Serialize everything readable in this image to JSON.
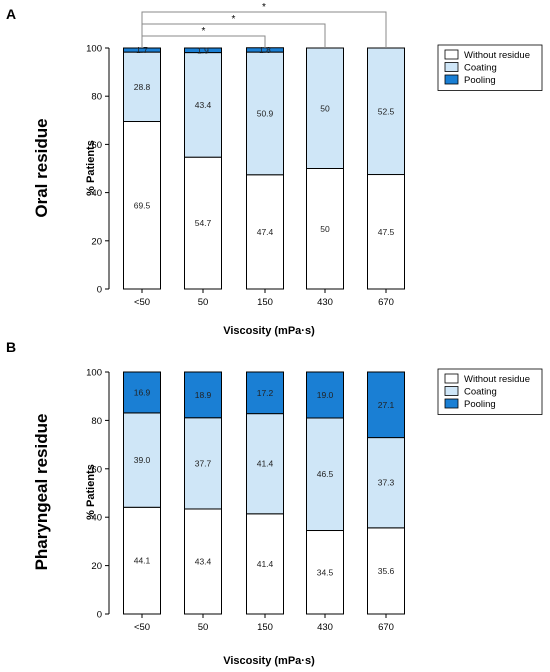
{
  "chart_data": [
    {
      "type": "bar",
      "stacked": true,
      "panel": "A",
      "side_label": "Oral residue",
      "xlabel": "Viscosity (mPa·s)",
      "ylabel": "% Patients",
      "ylim": [
        0,
        100
      ],
      "yticks": [
        0,
        20,
        40,
        60,
        80,
        100
      ],
      "categories": [
        "<50",
        "50",
        "150",
        "430",
        "670"
      ],
      "legend_position": "top-right",
      "series": [
        {
          "name": "Without residue",
          "color": "#ffffff",
          "values": [
            69.5,
            54.7,
            47.4,
            50,
            47.5
          ],
          "labels": [
            "69.5",
            "54.7",
            "47.4",
            "50",
            "47.5"
          ]
        },
        {
          "name": "Coating",
          "color": "#cfe6f7",
          "values": [
            28.8,
            43.4,
            50.9,
            50,
            52.5
          ],
          "labels": [
            "28.8",
            "43.4",
            "50.9",
            "50",
            "52.5"
          ]
        },
        {
          "name": "Pooling",
          "color": "#1a7fd4",
          "values": [
            1.7,
            1.9,
            1.8,
            0,
            0
          ],
          "labels": [
            "1.7",
            "1.9",
            "1.8",
            "",
            ""
          ]
        }
      ],
      "significance": [
        {
          "from": "<50",
          "to": "150",
          "label": "*"
        },
        {
          "from": "<50",
          "to": "430",
          "label": "*"
        },
        {
          "from": "<50",
          "to": "670",
          "label": "*"
        }
      ]
    },
    {
      "type": "bar",
      "stacked": true,
      "panel": "B",
      "side_label": "Pharyngeal residue",
      "xlabel": "Viscosity (mPa·s)",
      "ylabel": "% Patients",
      "ylim": [
        0,
        100
      ],
      "yticks": [
        0,
        20,
        40,
        60,
        80,
        100
      ],
      "categories": [
        "<50",
        "50",
        "150",
        "430",
        "670"
      ],
      "legend_position": "top-right",
      "series": [
        {
          "name": "Without residue",
          "color": "#ffffff",
          "values": [
            44.1,
            43.4,
            41.4,
            34.5,
            35.6
          ],
          "labels": [
            "44.1",
            "43.4",
            "41.4",
            "34.5",
            "35.6"
          ]
        },
        {
          "name": "Coating",
          "color": "#cfe6f7",
          "values": [
            39.0,
            37.7,
            41.4,
            46.5,
            37.3
          ],
          "labels": [
            "39.0",
            "37.7",
            "41.4",
            "46.5",
            "37.3"
          ]
        },
        {
          "name": "Pooling",
          "color": "#1a7fd4",
          "values": [
            16.9,
            18.9,
            17.2,
            19.0,
            27.1
          ],
          "labels": [
            "16.9",
            "18.9",
            "17.2",
            "19.0",
            "27.1"
          ]
        }
      ],
      "significance": []
    }
  ]
}
